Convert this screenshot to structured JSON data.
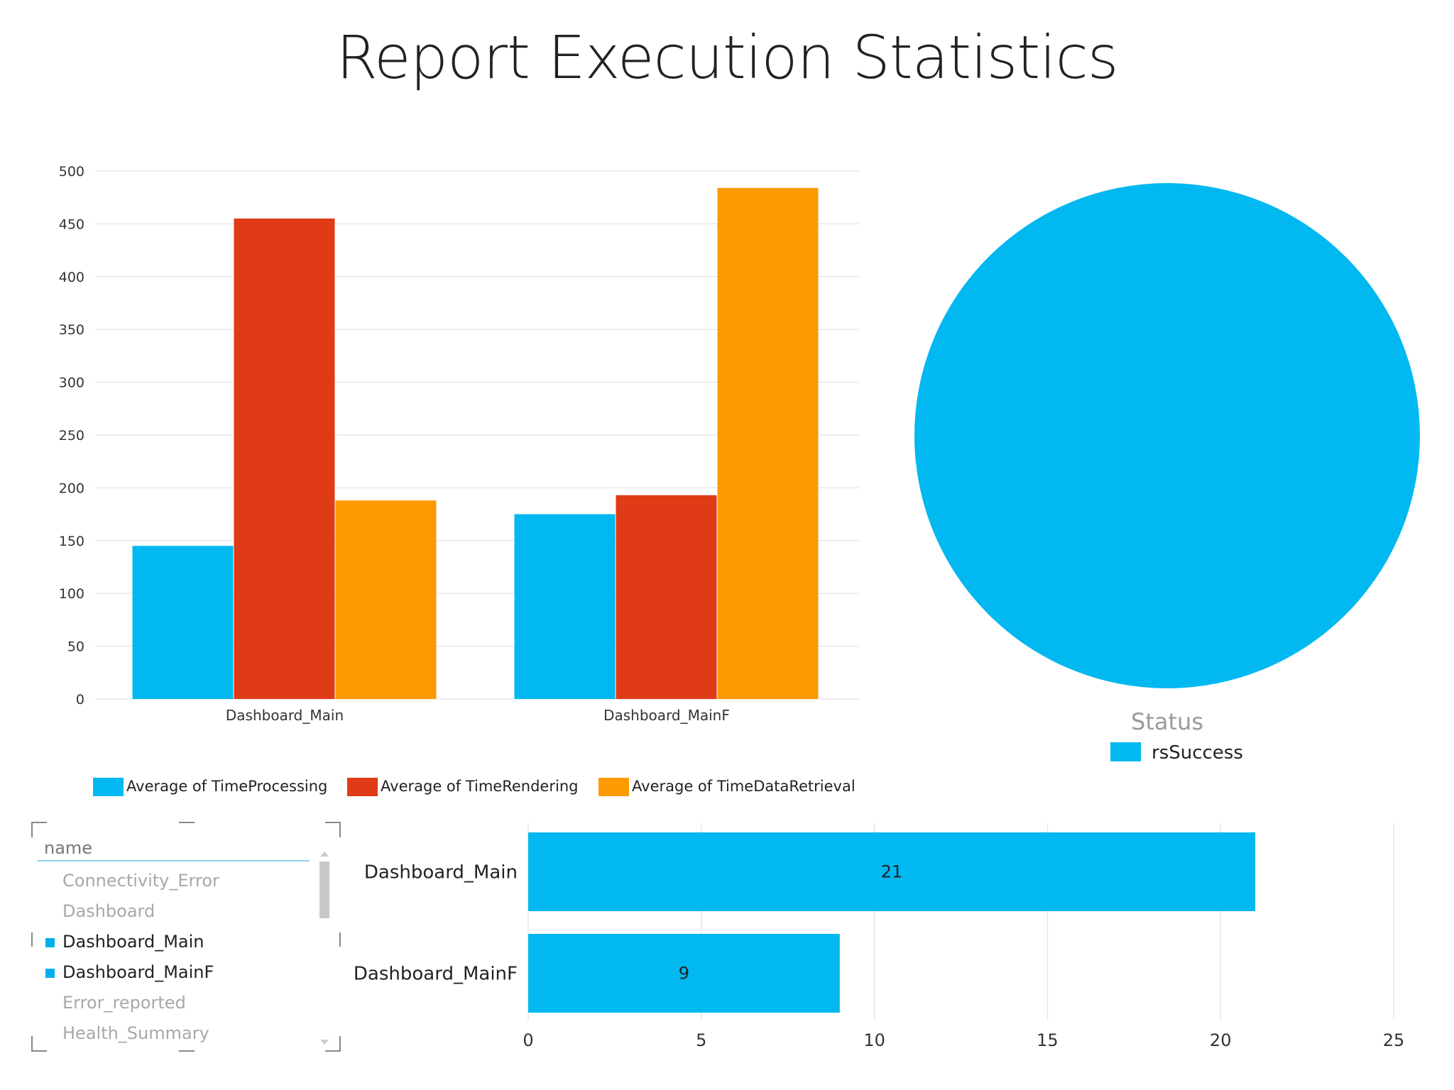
{
  "title": "Report Execution Statistics",
  "colors": {
    "processing": "#01B8F0",
    "rendering": "#DF3B16",
    "data_retrieval": "#FD9A01",
    "success": "#01B8F0",
    "gridline": "#e8e8e8"
  },
  "chart_data": [
    {
      "type": "bar",
      "categories": [
        "Dashboard_Main",
        "Dashboard_MainF"
      ],
      "series": [
        {
          "name": "Average of TimeProcessing",
          "values": [
            145,
            175
          ]
        },
        {
          "name": "Average of TimeRendering",
          "values": [
            455,
            193
          ]
        },
        {
          "name": "Average of TimeDataRetrieval",
          "values": [
            188,
            484
          ]
        }
      ],
      "ylim": [
        0,
        500
      ],
      "yticks": [
        0,
        50,
        100,
        150,
        200,
        250,
        300,
        350,
        400,
        450,
        500
      ],
      "grid": true,
      "legend_position": "bottom"
    },
    {
      "type": "pie",
      "legend_title": "Status",
      "slices": [
        {
          "label": "rsSuccess",
          "value": 1
        }
      ],
      "legend_position": "bottom"
    },
    {
      "type": "bar",
      "orientation": "horizontal",
      "categories": [
        "Dashboard_Main",
        "Dashboard_MainF"
      ],
      "values": [
        21,
        9
      ],
      "data_labels": [
        "21",
        "9"
      ],
      "xlim": [
        0,
        25
      ],
      "xticks": [
        0,
        5,
        10,
        15,
        20,
        25
      ],
      "grid": true
    }
  ],
  "slicer": {
    "header": "name",
    "items": [
      {
        "label": "Connectivity_Error",
        "selected": false
      },
      {
        "label": "Dashboard",
        "selected": false
      },
      {
        "label": "Dashboard_Main",
        "selected": true
      },
      {
        "label": "Dashboard_MainF",
        "selected": true
      },
      {
        "label": "Error_reported",
        "selected": false
      },
      {
        "label": "Health_Summary",
        "selected": false
      }
    ]
  }
}
